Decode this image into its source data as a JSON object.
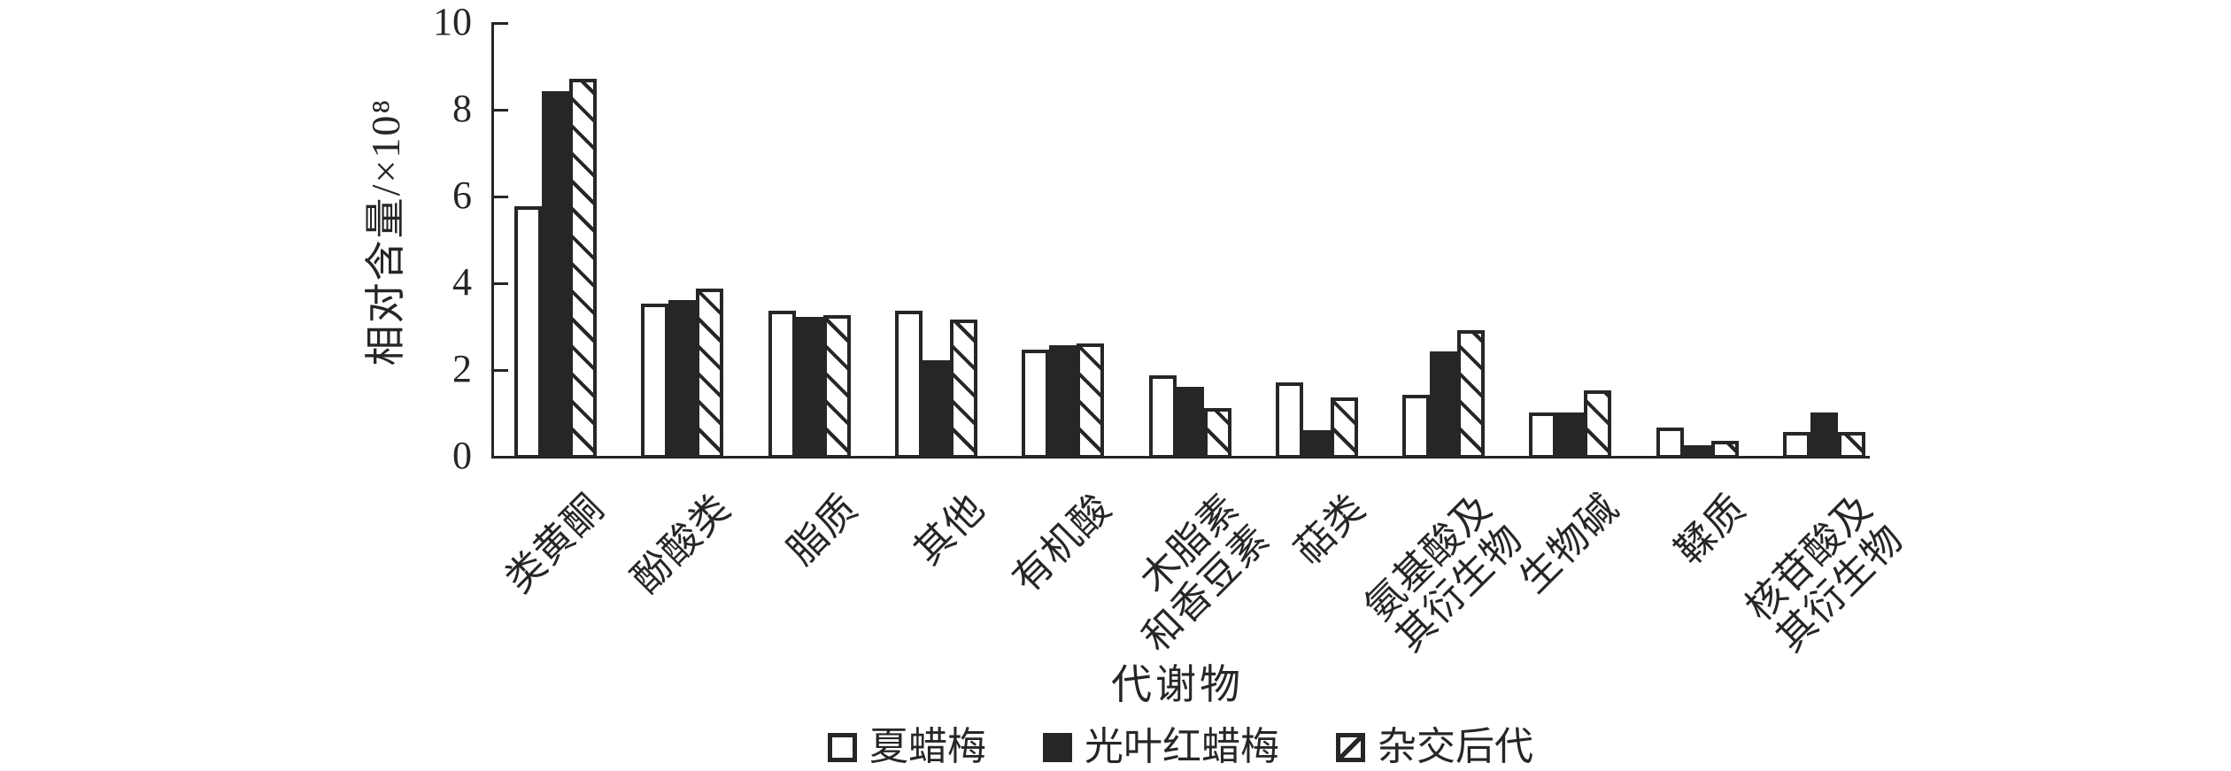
{
  "figure": {
    "background": "#ffffff",
    "ink_color": "#262626"
  },
  "chart_data": {
    "type": "bar",
    "title": "",
    "xlabel": "代谢物",
    "ylabel": "相对含量/×10⁸",
    "ylim": [
      0,
      10
    ],
    "yticks": [
      0,
      2,
      4,
      6,
      8,
      10
    ],
    "grid": false,
    "legend_position": "bottom",
    "bar_styles": [
      "white",
      "black",
      "hatched"
    ],
    "categories": [
      "类黄酮",
      "酚酸类",
      "脂质",
      "其他",
      "有机酸",
      "木脂素\n和香豆素",
      "萜类",
      "氨基酸及\n其衍生物",
      "生物碱",
      "鞣质",
      "核苷酸及\n其衍生物"
    ],
    "series": [
      {
        "name": "夏蜡梅",
        "style": "white",
        "values": [
          5.75,
          3.5,
          3.35,
          3.35,
          2.45,
          1.85,
          1.7,
          1.4,
          1.0,
          0.65,
          0.55
        ]
      },
      {
        "name": "光叶红蜡梅",
        "style": "black",
        "values": [
          8.4,
          3.6,
          3.2,
          2.2,
          2.55,
          1.6,
          0.6,
          2.4,
          1.0,
          0.25,
          1.0
        ]
      },
      {
        "name": "杂交后代",
        "style": "hatched",
        "values": [
          8.7,
          3.85,
          3.25,
          3.15,
          2.6,
          1.1,
          1.35,
          2.9,
          1.5,
          0.35,
          0.55
        ]
      }
    ]
  }
}
